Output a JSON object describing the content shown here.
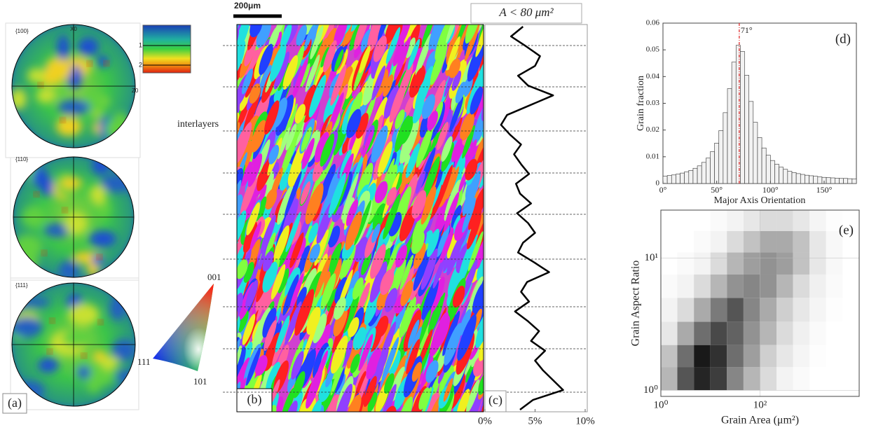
{
  "figure": {
    "pole_labels": [
      "{100}",
      "{110}",
      "{111}"
    ],
    "pole_axes": [
      "X0",
      "Z0"
    ],
    "colorbar_labels": [
      "1",
      "2"
    ],
    "ipf_labels": [
      "001",
      "111",
      "101"
    ],
    "panel_a": "(a)",
    "panel_b": "(b)",
    "scale_bar": "200μm",
    "interlayers": "interlayers"
  },
  "chart_data": [
    {
      "type": "line",
      "orientation": "vertical",
      "title": "A < 80 μm²",
      "panel_label": "(c)",
      "color": "#000000",
      "values": [
        3.8,
        2.6,
        4.1,
        5.5,
        5.0,
        3.3,
        4.3,
        6.8,
        4.5,
        2.2,
        1.6,
        2.5,
        3.6,
        2.9,
        3.6,
        4.4,
        3.1,
        3.5,
        4.6,
        3.2,
        4.3,
        5.0,
        3.8,
        3.3,
        4.9,
        6.4,
        4.2,
        3.6,
        4.4,
        3.0,
        4.3,
        5.4,
        4.6,
        6.0,
        5.0,
        5.8,
        6.8,
        7.8,
        4.8,
        3.5
      ],
      "xlim": [
        0,
        10
      ],
      "xticks": [
        {
          "value": 0,
          "label": "0%"
        },
        {
          "value": 5,
          "label": "5%"
        },
        {
          "value": 10,
          "label": "10%"
        }
      ]
    },
    {
      "type": "histogram",
      "panel_label": "(d)",
      "xlabel": "Major Axis Orientation",
      "ylabel": "Grain fraction",
      "color": "#f2f2f2",
      "edgecolor": "#333333",
      "bins": [
        0,
        4,
        8,
        12,
        16,
        20,
        24,
        28,
        32,
        36,
        40,
        44,
        48,
        52,
        56,
        60,
        64,
        68,
        72,
        76,
        80,
        84,
        88,
        92,
        96,
        100,
        104,
        108,
        112,
        116,
        120,
        124,
        128,
        132,
        136,
        140,
        144,
        148,
        152,
        156,
        160,
        164,
        168,
        172,
        176,
        180
      ],
      "values": [
        0.0027,
        0.003,
        0.0032,
        0.0035,
        0.0039,
        0.0044,
        0.0049,
        0.0057,
        0.0066,
        0.0079,
        0.0095,
        0.0119,
        0.0151,
        0.0198,
        0.0265,
        0.0355,
        0.0454,
        0.0517,
        0.0494,
        0.0405,
        0.0307,
        0.0229,
        0.0172,
        0.0133,
        0.0106,
        0.0086,
        0.0072,
        0.0061,
        0.0053,
        0.0046,
        0.0041,
        0.0037,
        0.0034,
        0.0031,
        0.0029,
        0.0027,
        0.0025,
        0.0023,
        0.0022,
        0.0021,
        0.002,
        0.0019,
        0.0019,
        0.0018,
        0.0017
      ],
      "annotation": {
        "value": 71,
        "label": "71°",
        "color": "#e02020"
      },
      "xlim": [
        0,
        180
      ],
      "ylim": [
        0,
        0.06
      ],
      "xticks": [
        {
          "value": 0,
          "label": "0°"
        },
        {
          "value": 50,
          "label": "50°"
        },
        {
          "value": 100,
          "label": "100°"
        },
        {
          "value": 150,
          "label": "150°"
        }
      ],
      "yticks": [
        0,
        0.01,
        0.02,
        0.03,
        0.04,
        0.05,
        0.06
      ]
    },
    {
      "type": "heatmap",
      "panel_label": "(e)",
      "xlabel": "Grain Area (μm²)",
      "ylabel": "Grain Aspect Ratio",
      "color": "#000000",
      "log_x": true,
      "log_y": true,
      "grid": true,
      "xbins": [
        1,
        2.15,
        4.64,
        10,
        21.5,
        46.4,
        100,
        215,
        464,
        1000,
        2150,
        4640,
        10000
      ],
      "ybins": [
        1,
        1.5,
        2.2,
        3.3,
        5,
        7.5,
        11,
        16,
        23
      ],
      "z": [
        [
          0.3,
          0.7,
          0.9,
          0.8,
          0.5,
          0.3,
          0.15,
          0.05,
          0.02,
          0,
          0,
          0
        ],
        [
          0.25,
          0.6,
          0.95,
          0.85,
          0.6,
          0.4,
          0.2,
          0.1,
          0.04,
          0.01,
          0,
          0
        ],
        [
          0.1,
          0.35,
          0.6,
          0.75,
          0.65,
          0.45,
          0.3,
          0.15,
          0.06,
          0.02,
          0,
          0
        ],
        [
          0.05,
          0.15,
          0.35,
          0.55,
          0.7,
          0.5,
          0.35,
          0.2,
          0.1,
          0.04,
          0.01,
          0
        ],
        [
          0.02,
          0.05,
          0.15,
          0.3,
          0.45,
          0.5,
          0.45,
          0.3,
          0.15,
          0.06,
          0.02,
          0
        ],
        [
          0,
          0.02,
          0.05,
          0.15,
          0.3,
          0.4,
          0.45,
          0.4,
          0.25,
          0.1,
          0.03,
          0
        ],
        [
          0,
          0,
          0.02,
          0.05,
          0.15,
          0.25,
          0.35,
          0.35,
          0.25,
          0.1,
          0.03,
          0
        ],
        [
          0,
          0,
          0,
          0.02,
          0.05,
          0.1,
          0.15,
          0.15,
          0.1,
          0.04,
          0.01,
          0
        ]
      ],
      "xlim": [
        1,
        10000
      ],
      "ylim": [
        0.9,
        23
      ],
      "xticks": [
        {
          "value": 1,
          "label": "10⁰"
        },
        {
          "value": 100,
          "label": "10²"
        }
      ],
      "yticks": [
        {
          "value": 1,
          "label": "10⁰"
        },
        {
          "value": 10,
          "label": "10¹"
        }
      ]
    }
  ]
}
